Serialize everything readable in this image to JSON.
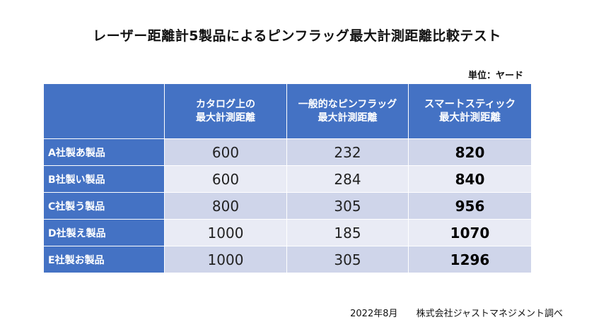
{
  "title": "レーザー距離計5製品によるピンフラッグ最大計測距離比較テスト",
  "unit": "単位：ヤード",
  "table": {
    "headers": [
      {
        "line1": "",
        "line2": ""
      },
      {
        "line1": "カタログ上の",
        "line2": "最大計測距離"
      },
      {
        "line1": "一般的なピンフラッグ",
        "line2": "最大計測距離"
      },
      {
        "line1": "スマートスティック",
        "line2": "最大計測距離"
      }
    ],
    "rows": [
      {
        "product": "A社製あ製品",
        "catalog": "600",
        "pin_flag": "232",
        "smart_stick": "820"
      },
      {
        "product": "B社製い製品",
        "catalog": "600",
        "pin_flag": "284",
        "smart_stick": "840"
      },
      {
        "product": "C社製う製品",
        "catalog": "800",
        "pin_flag": "305",
        "smart_stick": "956"
      },
      {
        "product": "D社製え製品",
        "catalog": "1000",
        "pin_flag": "185",
        "smart_stick": "1070"
      },
      {
        "product": "E社製お製品",
        "catalog": "1000",
        "pin_flag": "305",
        "smart_stick": "1296"
      }
    ]
  },
  "footer": {
    "date": "2022年8月",
    "source": "株式会社ジャストマネジメント調べ"
  },
  "colors": {
    "header_bg": "#4472c4",
    "row_dark": "#cfd5ea",
    "row_light": "#e9ebf5"
  }
}
